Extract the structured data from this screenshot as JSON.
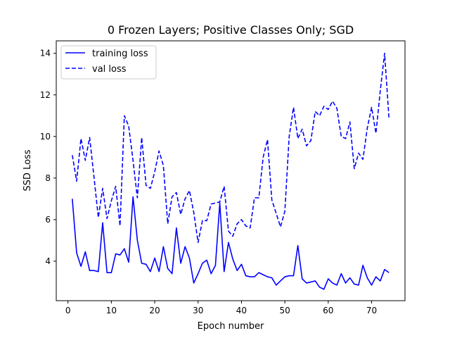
{
  "chart_data": {
    "type": "line",
    "title": "0 Frozen Layers; Positive Classes Only; SGD",
    "xlabel": "Epoch number",
    "ylabel": "SSD Loss",
    "xlim": [
      -2.7,
      77.7
    ],
    "ylim": [
      2.1,
      14.6
    ],
    "x_ticks": [
      0,
      10,
      20,
      30,
      40,
      50,
      60,
      70
    ],
    "y_ticks": [
      4,
      6,
      8,
      10,
      12,
      14
    ],
    "legend_position": "top-left",
    "grid": false,
    "x": [
      1,
      2,
      3,
      4,
      5,
      6,
      7,
      8,
      9,
      10,
      11,
      12,
      13,
      14,
      15,
      16,
      17,
      18,
      19,
      20,
      21,
      22,
      23,
      24,
      25,
      26,
      27,
      28,
      29,
      30,
      31,
      32,
      33,
      34,
      35,
      36,
      37,
      38,
      39,
      40,
      41,
      42,
      43,
      44,
      45,
      46,
      47,
      48,
      49,
      50,
      51,
      52,
      53,
      54,
      55,
      56,
      57,
      58,
      59,
      60,
      61,
      62,
      63,
      64,
      65,
      66,
      67,
      68,
      69,
      70,
      71,
      72,
      73,
      74
    ],
    "series": [
      {
        "name": "training loss",
        "color": "#0000ff",
        "style": "solid",
        "values": [
          7.0,
          4.4,
          3.75,
          4.45,
          3.55,
          3.55,
          3.5,
          5.85,
          3.45,
          3.45,
          4.35,
          4.3,
          4.6,
          3.95,
          7.1,
          5.0,
          3.9,
          3.85,
          3.5,
          4.15,
          3.5,
          4.7,
          3.65,
          3.4,
          5.6,
          3.9,
          4.7,
          4.15,
          2.95,
          3.4,
          3.9,
          4.05,
          3.4,
          3.8,
          6.8,
          3.5,
          4.9,
          4.1,
          3.55,
          3.85,
          3.3,
          3.25,
          3.25,
          3.45,
          3.35,
          3.25,
          3.2,
          2.85,
          3.05,
          3.25,
          3.3,
          3.3,
          4.75,
          3.15,
          2.95,
          3.0,
          3.05,
          2.75,
          2.65,
          3.15,
          2.95,
          2.85,
          3.4,
          2.95,
          3.2,
          2.9,
          2.85,
          3.8,
          3.2,
          2.85,
          3.25,
          3.05,
          3.6,
          3.45
        ]
      },
      {
        "name": "val loss",
        "color": "#0000ff",
        "style": "dashed",
        "values": [
          9.1,
          7.85,
          9.9,
          8.85,
          9.95,
          8.05,
          6.1,
          7.5,
          6.05,
          6.9,
          7.6,
          5.7,
          11.0,
          10.5,
          8.85,
          7.05,
          9.95,
          7.65,
          7.5,
          8.3,
          9.3,
          8.6,
          5.8,
          7.1,
          7.3,
          6.25,
          7.0,
          7.4,
          6.35,
          4.9,
          5.95,
          5.95,
          6.75,
          6.8,
          6.85,
          7.6,
          5.45,
          5.2,
          5.8,
          6.0,
          5.7,
          5.6,
          7.05,
          7.05,
          9.0,
          9.85,
          6.95,
          6.3,
          5.65,
          6.4,
          10.0,
          11.4,
          9.9,
          10.35,
          9.55,
          9.8,
          11.2,
          11.0,
          11.45,
          11.3,
          11.7,
          11.35,
          10.0,
          9.9,
          10.7,
          8.45,
          9.2,
          8.9,
          10.4,
          11.4,
          10.15,
          12.2,
          14.0,
          10.9
        ]
      }
    ]
  }
}
